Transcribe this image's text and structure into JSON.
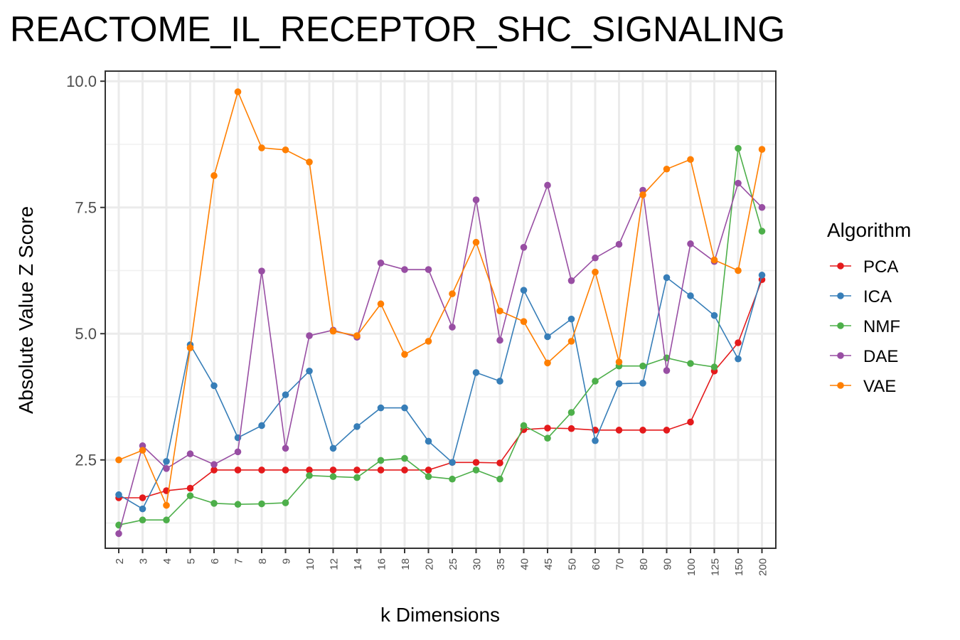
{
  "chart_data": {
    "type": "line",
    "title": "REACTOME_IL_RECEPTOR_SHC_SIGNALING",
    "xlabel": "k Dimensions",
    "ylabel": "Absolute Value Z Score",
    "categories": [
      "2",
      "3",
      "4",
      "5",
      "6",
      "7",
      "8",
      "9",
      "10",
      "12",
      "14",
      "16",
      "18",
      "20",
      "25",
      "30",
      "35",
      "40",
      "45",
      "50",
      "60",
      "70",
      "80",
      "90",
      "100",
      "125",
      "150",
      "200"
    ],
    "ylim": [
      0.75,
      10.2
    ],
    "yticks": [
      2.5,
      5.0,
      7.5,
      10.0
    ],
    "ytick_labels": [
      "2.5",
      "5.0",
      "7.5",
      "10.0"
    ],
    "grid": true,
    "legend": {
      "title": "Algorithm",
      "placement": "right"
    },
    "series": [
      {
        "name": "PCA",
        "color": "#e41a1c",
        "values": [
          1.75,
          1.75,
          1.89,
          1.94,
          2.3,
          2.3,
          2.3,
          2.3,
          2.3,
          2.3,
          2.3,
          2.3,
          2.3,
          2.3,
          2.45,
          2.45,
          2.44,
          3.1,
          3.13,
          3.12,
          3.09,
          3.09,
          3.09,
          3.09,
          3.25,
          4.26,
          4.82,
          6.07
        ]
      },
      {
        "name": "ICA",
        "color": "#377eb8",
        "values": [
          1.81,
          1.53,
          2.47,
          4.78,
          3.97,
          2.94,
          3.18,
          3.79,
          4.26,
          2.73,
          3.16,
          3.53,
          3.53,
          2.87,
          2.45,
          4.23,
          4.06,
          5.86,
          4.94,
          5.29,
          2.88,
          4.01,
          4.02,
          6.11,
          5.75,
          5.36,
          4.5,
          6.16
        ]
      },
      {
        "name": "NMF",
        "color": "#4daf4a",
        "values": [
          1.21,
          1.31,
          1.31,
          1.79,
          1.64,
          1.62,
          1.63,
          1.65,
          2.19,
          2.17,
          2.15,
          2.49,
          2.53,
          2.17,
          2.12,
          2.3,
          2.12,
          3.18,
          2.93,
          3.44,
          4.06,
          4.36,
          4.36,
          4.52,
          4.41,
          4.34,
          8.67,
          7.03
        ]
      },
      {
        "name": "DAE",
        "color": "#984ea3",
        "values": [
          1.04,
          2.78,
          2.33,
          2.62,
          2.41,
          2.66,
          6.24,
          2.73,
          4.96,
          5.07,
          4.93,
          6.4,
          6.27,
          6.27,
          5.13,
          7.65,
          4.87,
          6.71,
          7.94,
          6.05,
          6.5,
          6.77,
          7.84,
          4.27,
          6.78,
          6.43,
          7.98,
          7.5
        ]
      },
      {
        "name": "VAE",
        "color": "#ff7f00",
        "values": [
          2.5,
          2.69,
          1.6,
          4.72,
          8.13,
          9.79,
          8.68,
          8.64,
          8.4,
          5.05,
          4.96,
          5.59,
          4.59,
          4.85,
          5.79,
          6.81,
          5.45,
          5.24,
          4.42,
          4.85,
          6.22,
          4.44,
          7.75,
          8.26,
          8.45,
          6.46,
          6.25,
          8.65
        ]
      }
    ]
  }
}
